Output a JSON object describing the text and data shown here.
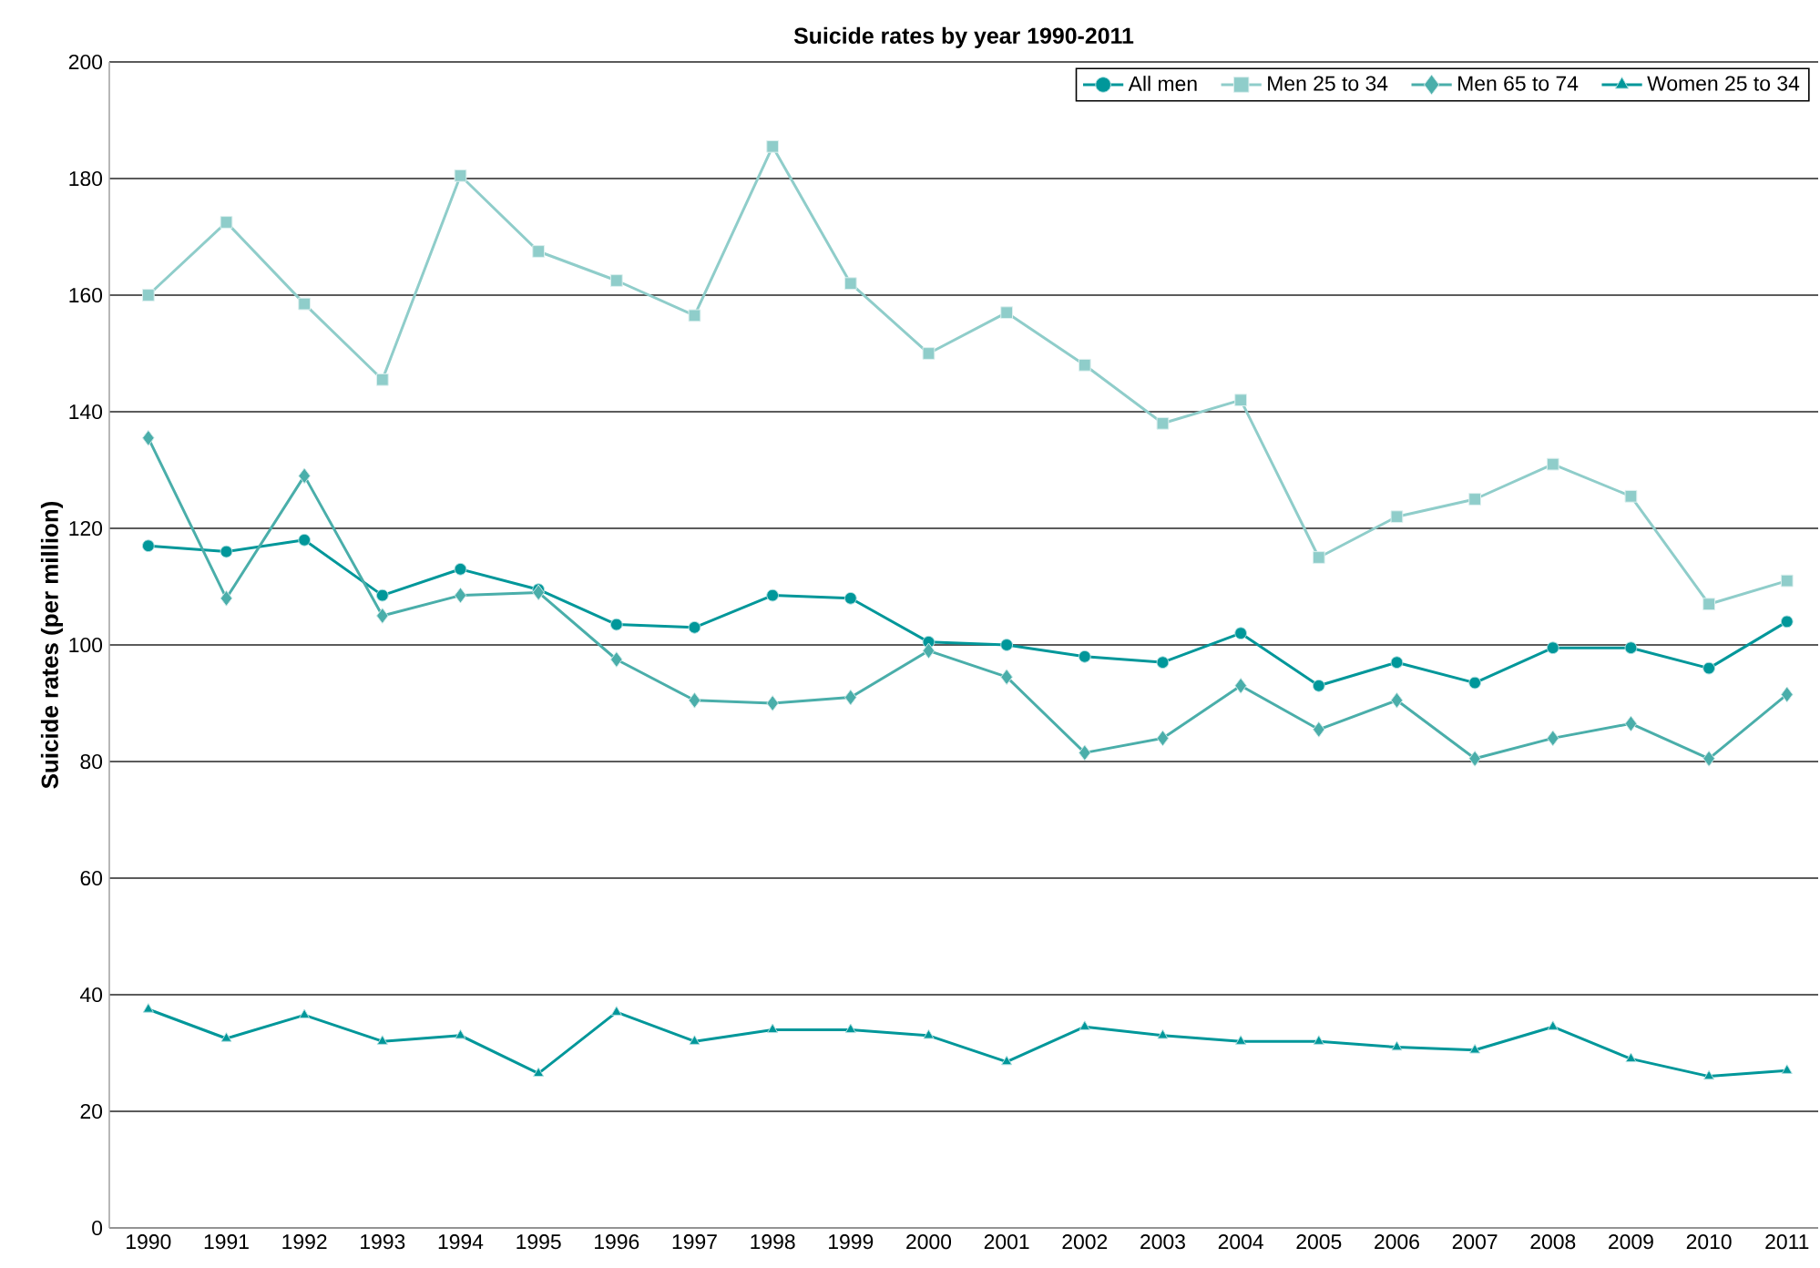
{
  "chart_data": {
    "type": "line",
    "title": "Suicide rates by year 1990-2011",
    "ylabel": "Suicide rates (per million)",
    "categories": [
      "1990",
      "1991",
      "1992",
      "1993",
      "1994",
      "1995",
      "1996",
      "1997",
      "1998",
      "1999",
      "2000",
      "2001",
      "2002",
      "2003",
      "2004",
      "2005",
      "2006",
      "2007",
      "2008",
      "2009",
      "2010",
      "2011"
    ],
    "ylim": [
      0,
      200
    ],
    "yticks": [
      0,
      20,
      40,
      60,
      80,
      100,
      120,
      140,
      160,
      180,
      200
    ],
    "grid": "y",
    "legend": "top right",
    "line_style": "solid",
    "series": [
      {
        "name": "All men",
        "color": "#00979a",
        "marker": "circle",
        "values": [
          117,
          116,
          118,
          108.5,
          113,
          109.5,
          103.5,
          103,
          108.5,
          108,
          100.5,
          100,
          98,
          97,
          102,
          93,
          97,
          93.5,
          99.5,
          99.5,
          96,
          104
        ]
      },
      {
        "name": "Men 25 to 34",
        "color": "#8fcdca",
        "marker": "square",
        "values": [
          160,
          172.5,
          158.5,
          145.5,
          180.5,
          167.5,
          162.5,
          156.5,
          185.5,
          162,
          150,
          157,
          148,
          138,
          142,
          115,
          122,
          125,
          131,
          125.5,
          107,
          111
        ]
      },
      {
        "name": "Men 65 to 74",
        "color": "#4aaeaa",
        "marker": "diamond",
        "values": [
          135.5,
          108,
          129,
          105,
          108.5,
          109,
          97.5,
          90.5,
          90,
          91,
          99,
          94.5,
          81.5,
          84,
          93,
          85.5,
          90.5,
          80.5,
          84,
          86.5,
          80.5,
          91.5
        ]
      },
      {
        "name": "Women 25 to 34",
        "color": "#00979a",
        "marker": "triangle",
        "values": [
          37.5,
          32.5,
          36.5,
          32,
          33,
          26.5,
          37,
          32,
          34,
          34,
          33,
          28.5,
          34.5,
          33,
          32,
          32,
          31,
          30.5,
          34.5,
          29,
          26,
          27
        ]
      }
    ]
  }
}
